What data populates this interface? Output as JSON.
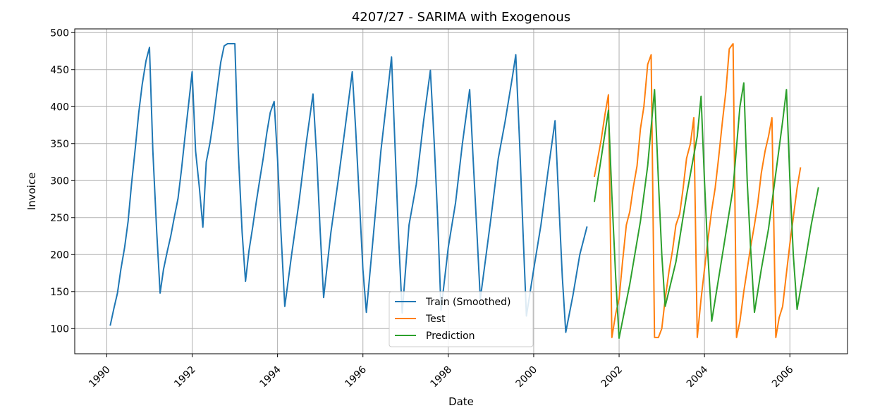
{
  "chart_data": {
    "type": "line",
    "title": "4207/27 - SARIMA with Exogenous",
    "xlabel": "Date",
    "ylabel": "Invoice",
    "xlim": [
      1989.25,
      2007.35
    ],
    "ylim": [
      66,
      505
    ],
    "grid": true,
    "legend_position": "bottom-center",
    "x_ticks": [
      "1990",
      "1992",
      "1994",
      "1996",
      "1998",
      "2000",
      "2002",
      "2004",
      "2006"
    ],
    "x_tick_values": [
      1990,
      1992,
      1994,
      1996,
      1998,
      2000,
      2002,
      2004,
      2006
    ],
    "y_ticks": [
      "100",
      "150",
      "200",
      "250",
      "300",
      "350",
      "400",
      "450",
      "500"
    ],
    "y_tick_values": [
      100,
      150,
      200,
      250,
      300,
      350,
      400,
      450,
      500
    ],
    "series": [
      {
        "name": "Train (Smoothed)",
        "color": "#1f77b4",
        "points": [
          [
            1990.08,
            104
          ],
          [
            1990.17,
            128
          ],
          [
            1990.25,
            148
          ],
          [
            1990.33,
            180
          ],
          [
            1990.42,
            210
          ],
          [
            1990.5,
            245
          ],
          [
            1990.58,
            295
          ],
          [
            1990.67,
            345
          ],
          [
            1990.75,
            392
          ],
          [
            1990.83,
            430
          ],
          [
            1990.92,
            462
          ],
          [
            1991.0,
            480
          ],
          [
            1991.08,
            340
          ],
          [
            1991.17,
            230
          ],
          [
            1991.25,
            148
          ],
          [
            1991.33,
            180
          ],
          [
            1991.42,
            205
          ],
          [
            1991.5,
            225
          ],
          [
            1991.58,
            250
          ],
          [
            1991.67,
            276
          ],
          [
            1991.75,
            315
          ],
          [
            1991.83,
            358
          ],
          [
            1991.92,
            405
          ],
          [
            1992.0,
            447
          ],
          [
            1992.08,
            340
          ],
          [
            1992.17,
            290
          ],
          [
            1992.25,
            237
          ],
          [
            1992.33,
            325
          ],
          [
            1992.42,
            352
          ],
          [
            1992.5,
            383
          ],
          [
            1992.58,
            420
          ],
          [
            1992.67,
            460
          ],
          [
            1992.75,
            482
          ],
          [
            1992.83,
            485
          ],
          [
            1992.92,
            485
          ],
          [
            1993.0,
            485
          ],
          [
            1993.08,
            340
          ],
          [
            1993.17,
            230
          ],
          [
            1993.25,
            164
          ],
          [
            1993.33,
            205
          ],
          [
            1993.42,
            238
          ],
          [
            1993.5,
            270
          ],
          [
            1993.58,
            300
          ],
          [
            1993.67,
            332
          ],
          [
            1993.75,
            365
          ],
          [
            1993.83,
            392
          ],
          [
            1993.92,
            407
          ],
          [
            1994.0,
            330
          ],
          [
            1994.08,
            230
          ],
          [
            1994.17,
            130
          ],
          [
            1994.33,
            200
          ],
          [
            1994.5,
            270
          ],
          [
            1994.67,
            350
          ],
          [
            1994.83,
            417
          ],
          [
            1994.92,
            330
          ],
          [
            1995.0,
            230
          ],
          [
            1995.08,
            142
          ],
          [
            1995.25,
            230
          ],
          [
            1995.42,
            300
          ],
          [
            1995.58,
            370
          ],
          [
            1995.75,
            447
          ],
          [
            1995.83,
            370
          ],
          [
            1995.92,
            270
          ],
          [
            1996.0,
            180
          ],
          [
            1996.08,
            122
          ],
          [
            1996.25,
            230
          ],
          [
            1996.42,
            340
          ],
          [
            1996.58,
            420
          ],
          [
            1996.67,
            467
          ],
          [
            1996.75,
            350
          ],
          [
            1996.83,
            230
          ],
          [
            1996.92,
            121
          ],
          [
            1997.08,
            240
          ],
          [
            1997.25,
            295
          ],
          [
            1997.42,
            380
          ],
          [
            1997.58,
            449
          ],
          [
            1997.67,
            350
          ],
          [
            1997.75,
            250
          ],
          [
            1997.83,
            125
          ],
          [
            1998.0,
            210
          ],
          [
            1998.17,
            270
          ],
          [
            1998.33,
            350
          ],
          [
            1998.5,
            423
          ],
          [
            1998.58,
            330
          ],
          [
            1998.67,
            230
          ],
          [
            1998.75,
            140
          ],
          [
            1999.0,
            250
          ],
          [
            1999.17,
            330
          ],
          [
            1999.33,
            380
          ],
          [
            1999.5,
            440
          ],
          [
            1999.58,
            470
          ],
          [
            1999.67,
            350
          ],
          [
            1999.75,
            230
          ],
          [
            1999.83,
            117
          ],
          [
            2000.0,
            180
          ],
          [
            2000.17,
            240
          ],
          [
            2000.33,
            310
          ],
          [
            2000.5,
            381
          ],
          [
            2000.58,
            280
          ],
          [
            2000.67,
            170
          ],
          [
            2000.75,
            95
          ],
          [
            2000.92,
            145
          ],
          [
            2001.08,
            200
          ],
          [
            2001.25,
            238
          ]
        ]
      },
      {
        "name": "Test",
        "color": "#ff7f0e",
        "points": [
          [
            2001.42,
            305
          ],
          [
            2001.5,
            330
          ],
          [
            2001.58,
            355
          ],
          [
            2001.67,
            390
          ],
          [
            2001.75,
            416
          ],
          [
            2001.83,
            88
          ],
          [
            2001.92,
            120
          ],
          [
            2002.0,
            140
          ],
          [
            2002.08,
            190
          ],
          [
            2002.17,
            240
          ],
          [
            2002.25,
            258
          ],
          [
            2002.33,
            290
          ],
          [
            2002.42,
            320
          ],
          [
            2002.5,
            370
          ],
          [
            2002.58,
            400
          ],
          [
            2002.67,
            457
          ],
          [
            2002.75,
            470
          ],
          [
            2002.83,
            88
          ],
          [
            2002.92,
            88
          ],
          [
            2003.0,
            100
          ],
          [
            2003.08,
            140
          ],
          [
            2003.17,
            178
          ],
          [
            2003.25,
            205
          ],
          [
            2003.33,
            240
          ],
          [
            2003.42,
            255
          ],
          [
            2003.5,
            290
          ],
          [
            2003.58,
            330
          ],
          [
            2003.67,
            350
          ],
          [
            2003.75,
            385
          ],
          [
            2003.83,
            88
          ],
          [
            2003.92,
            140
          ],
          [
            2004.0,
            180
          ],
          [
            2004.08,
            220
          ],
          [
            2004.17,
            260
          ],
          [
            2004.25,
            290
          ],
          [
            2004.33,
            330
          ],
          [
            2004.42,
            380
          ],
          [
            2004.5,
            420
          ],
          [
            2004.58,
            478
          ],
          [
            2004.67,
            485
          ],
          [
            2004.75,
            88
          ],
          [
            2004.83,
            110
          ],
          [
            2004.92,
            150
          ],
          [
            2005.0,
            180
          ],
          [
            2005.08,
            210
          ],
          [
            2005.17,
            240
          ],
          [
            2005.25,
            270
          ],
          [
            2005.33,
            310
          ],
          [
            2005.42,
            340
          ],
          [
            2005.5,
            360
          ],
          [
            2005.58,
            385
          ],
          [
            2005.67,
            88
          ],
          [
            2005.75,
            115
          ],
          [
            2005.83,
            130
          ],
          [
            2005.92,
            175
          ],
          [
            2006.0,
            215
          ],
          [
            2006.08,
            250
          ],
          [
            2006.17,
            290
          ],
          [
            2006.25,
            318
          ]
        ]
      },
      {
        "name": "Prediction",
        "color": "#2ca02c",
        "points": [
          [
            2001.42,
            271
          ],
          [
            2001.58,
            330
          ],
          [
            2001.75,
            395
          ],
          [
            2001.83,
            280
          ],
          [
            2001.92,
            170
          ],
          [
            2002.0,
            87
          ],
          [
            2002.25,
            160
          ],
          [
            2002.5,
            245
          ],
          [
            2002.67,
            320
          ],
          [
            2002.83,
            423
          ],
          [
            2002.92,
            300
          ],
          [
            2003.0,
            200
          ],
          [
            2003.08,
            130
          ],
          [
            2003.33,
            190
          ],
          [
            2003.58,
            280
          ],
          [
            2003.83,
            360
          ],
          [
            2003.92,
            414
          ],
          [
            2004.0,
            300
          ],
          [
            2004.08,
            200
          ],
          [
            2004.17,
            110
          ],
          [
            2004.42,
            200
          ],
          [
            2004.67,
            290
          ],
          [
            2004.83,
            400
          ],
          [
            2004.92,
            432
          ],
          [
            2005.0,
            300
          ],
          [
            2005.08,
            210
          ],
          [
            2005.17,
            122
          ],
          [
            2005.33,
            180
          ],
          [
            2005.5,
            235
          ],
          [
            2005.67,
            310
          ],
          [
            2005.83,
            380
          ],
          [
            2005.92,
            423
          ],
          [
            2006.0,
            300
          ],
          [
            2006.08,
            200
          ],
          [
            2006.17,
            126
          ],
          [
            2006.33,
            180
          ],
          [
            2006.5,
            240
          ],
          [
            2006.67,
            291
          ]
        ]
      }
    ]
  }
}
